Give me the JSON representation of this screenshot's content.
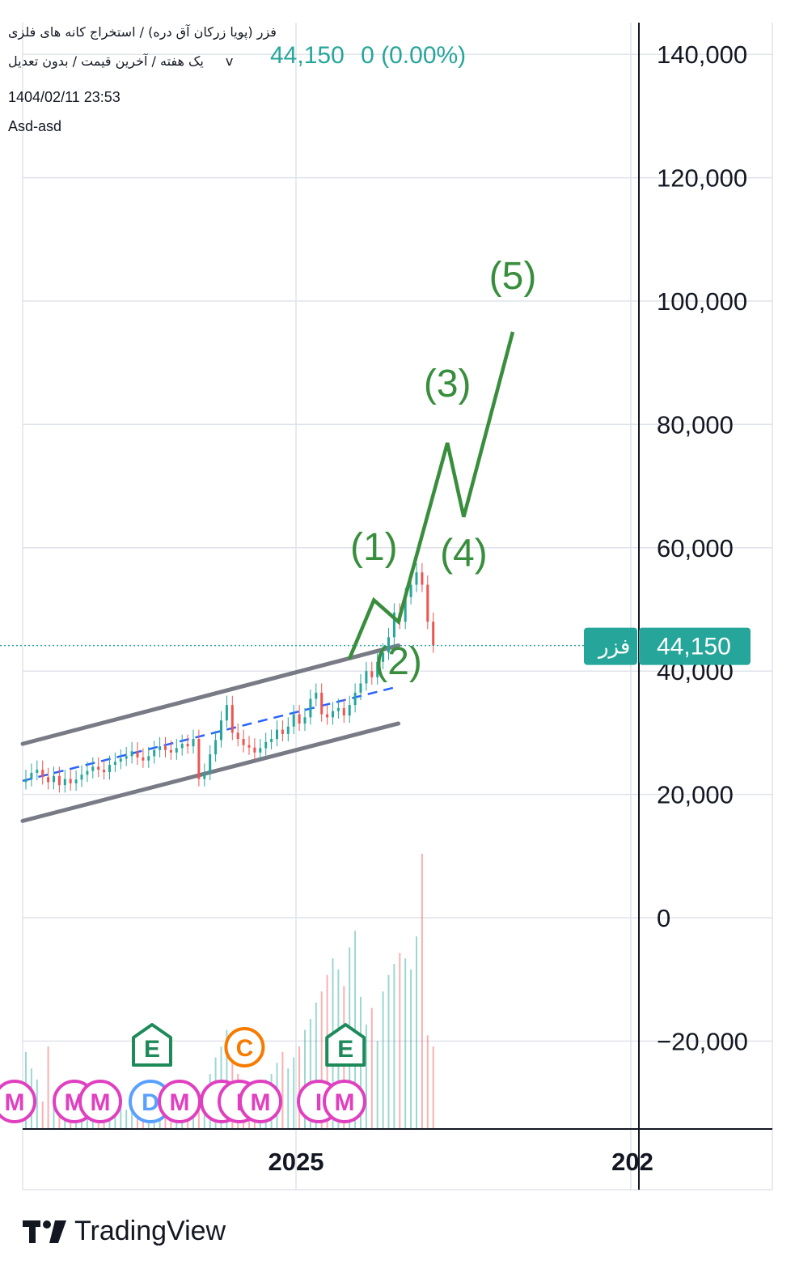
{
  "header": {
    "symbol_title": "فزر (پویا زرکان آق دره) / استخراج کانه های فلزی",
    "timeframe": "یک هفته / آخرین قیمت / بدون تعدیل",
    "dropdown_glyph": "v",
    "last_price": "44,150",
    "change": "0 (0.00%)",
    "timestamp": "1404/02/11 23:53",
    "author": "Asd-asd"
  },
  "price_tag": {
    "symbol": "فزر",
    "value": "44,150"
  },
  "brand": {
    "name": "TradingView"
  },
  "colors": {
    "up": "#26a69a",
    "down": "#ef5350",
    "wave": "#388e3c",
    "channel": "#787b86",
    "midline": "#2962ff",
    "tag": "#26a69a",
    "magenta": "#e040c0"
  },
  "chart_data": {
    "type": "candlestick",
    "timeframe": "weekly",
    "y_axis": {
      "ticks": [
        140000,
        120000,
        100000,
        80000,
        60000,
        40000,
        20000,
        0,
        -20000
      ],
      "tick_labels": [
        "140,000",
        "120,000",
        "100,000",
        "80,000",
        "60,000",
        "40,000",
        "20,000",
        "0",
        "−20,000"
      ]
    },
    "x_axis": {
      "tick_labels": [
        "2025",
        "202"
      ]
    },
    "last_price": 44150,
    "candles_close": [
      22500,
      23500,
      24000,
      22800,
      22000,
      23000,
      21500,
      22500,
      21800,
      22400,
      23200,
      23800,
      24500,
      24000,
      23600,
      24800,
      25300,
      25800,
      26200,
      27000,
      26000,
      25500,
      26200,
      27200,
      27800,
      27200,
      26800,
      27500,
      28200,
      27800,
      29000,
      22500,
      23500,
      26500,
      28800,
      32000,
      34500,
      30000,
      29000,
      28000,
      27600,
      26800,
      27500,
      28500,
      29000,
      30500,
      29800,
      31000,
      33000,
      31500,
      32500,
      35500,
      36500,
      33000,
      32500,
      33500,
      34000,
      32800,
      34500,
      36500,
      38000,
      40000,
      39000,
      41500,
      43000,
      45500,
      49500,
      48000,
      52000,
      54000,
      56000,
      54000,
      48000,
      44150
    ],
    "volume_relative": [
      0.28,
      0.22,
      0.18,
      0.1,
      0.3,
      0.12,
      0.08,
      0.1,
      0.06,
      0.08,
      0.1,
      0.05,
      0.07,
      0.09,
      0.06,
      0.06,
      0.08,
      0.1,
      0.07,
      0.06,
      0.08,
      0.1,
      0.08,
      0.06,
      0.07,
      0.09,
      0.1,
      0.12,
      0.08,
      0.07,
      0.08,
      0.1,
      0.14,
      0.2,
      0.26,
      0.3,
      0.36,
      0.34,
      0.2,
      0.16,
      0.12,
      0.1,
      0.14,
      0.18,
      0.2,
      0.24,
      0.28,
      0.22,
      0.26,
      0.3,
      0.36,
      0.4,
      0.46,
      0.5,
      0.56,
      0.62,
      0.58,
      0.52,
      0.66,
      0.72,
      0.48,
      0.38,
      0.44,
      0.32,
      0.5,
      0.56,
      0.6,
      0.64,
      0.62,
      0.58,
      0.7,
      1.0,
      0.34,
      0.3
    ],
    "channel": {
      "upper": [
        [
          0,
          28200
        ],
        [
          46,
          44150
        ]
      ],
      "middle": [
        [
          0,
          22200
        ],
        [
          46,
          37500
        ]
      ],
      "lower": [
        [
          0,
          15700
        ],
        [
          46,
          31500
        ]
      ]
    },
    "elliott_wave": {
      "labels": [
        "(1)",
        "(2)",
        "(3)",
        "(4)",
        "(5)"
      ],
      "points": [
        [
          40,
          42000
        ],
        [
          43,
          51500
        ],
        [
          46,
          48000
        ],
        [
          52,
          77000
        ],
        [
          54,
          65000
        ],
        [
          60,
          95000
        ]
      ],
      "label_values": [
        [
          43,
          58000
        ],
        [
          46,
          39500
        ],
        [
          52,
          84500
        ],
        [
          54,
          57000
        ],
        [
          60,
          102000
        ]
      ]
    },
    "event_markers": [
      {
        "type": "E",
        "index": 15
      },
      {
        "type": "C",
        "index": 26
      },
      {
        "type": "E",
        "index": 38
      }
    ],
    "bottom_badges": [
      "M",
      "M",
      "M",
      "D",
      "M",
      "I",
      "I",
      "M",
      "I",
      "M"
    ]
  }
}
